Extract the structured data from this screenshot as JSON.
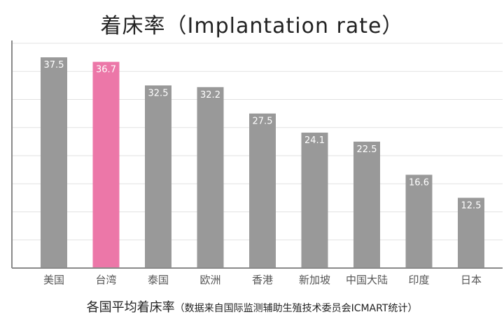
{
  "chart_data": {
    "type": "bar",
    "title": "着床率（Implantation rate）",
    "categories": [
      "美国",
      "台湾",
      "泰国",
      "欧洲",
      "香港",
      "新加坡",
      "中国大陆",
      "印度",
      "日本"
    ],
    "values": [
      37.5,
      36.7,
      32.5,
      32.2,
      27.5,
      24.1,
      22.5,
      16.6,
      12.5
    ],
    "value_labels": [
      "37.5",
      "36.7",
      "32.5",
      "32.2",
      "27.5",
      "24.1",
      "22.5",
      "16.6",
      "12.5"
    ],
    "highlight_category": "台湾",
    "colors": {
      "bar": "#999999",
      "highlight": "#ec77a8",
      "grid": "#e2e2e2",
      "axis": "#8a8a8a",
      "label": "#ffffff"
    },
    "ylim": [
      0,
      40
    ],
    "grid_step": 5,
    "grid": true,
    "xlabel": "各国平均着床率",
    "xlabel_note": "（数据来自国际监测辅助生殖技术委员会ICMART统计）"
  }
}
